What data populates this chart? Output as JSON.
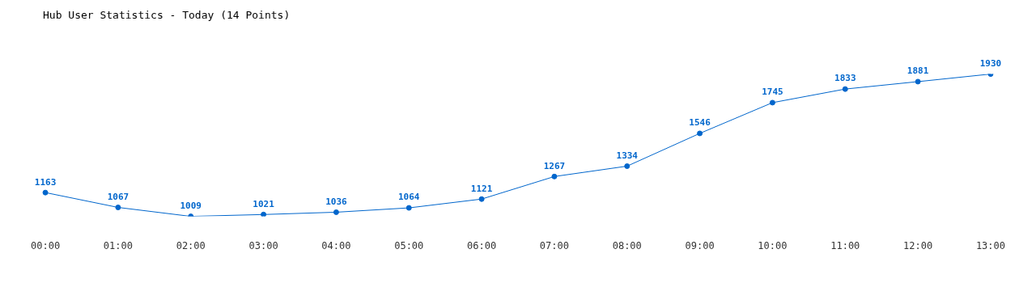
{
  "chart_data": {
    "type": "line",
    "title": "Hub User Statistics - Today (14 Points)",
    "categories": [
      "00:00",
      "01:00",
      "02:00",
      "03:00",
      "04:00",
      "05:00",
      "06:00",
      "07:00",
      "08:00",
      "09:00",
      "10:00",
      "11:00",
      "12:00",
      "13:00"
    ],
    "values": [
      1163,
      1067,
      1009,
      1021,
      1036,
      1064,
      1121,
      1267,
      1334,
      1546,
      1745,
      1833,
      1881,
      1930
    ],
    "color": "#0066cc",
    "data_labels": true,
    "marker": "circle",
    "line_style": "solid",
    "grid": false,
    "legend": false
  }
}
